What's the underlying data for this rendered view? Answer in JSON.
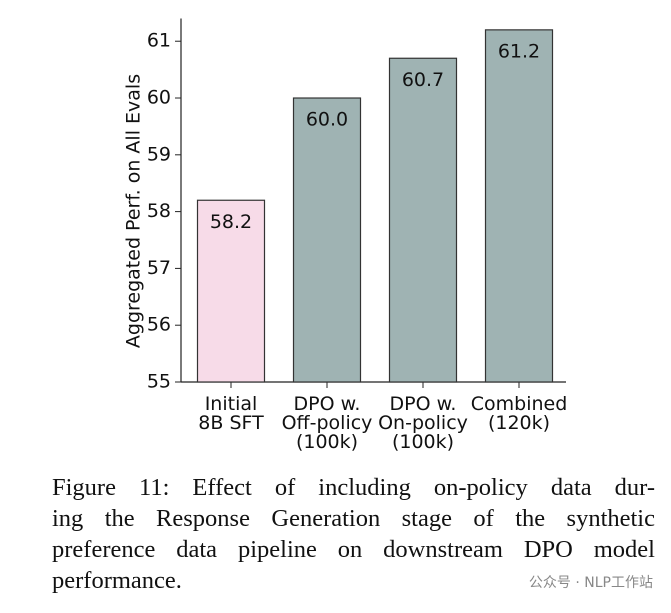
{
  "chart_data": {
    "type": "bar",
    "y_label": "Aggregated Perf. on All Evals",
    "categories": [
      "Initial\n8B SFT",
      "DPO w.\nOff-policy\n(100k)",
      "DPO w.\nOn-policy\n(100k)",
      "Combined\n(120k)"
    ],
    "values": [
      58.2,
      60.0,
      60.7,
      61.2
    ],
    "value_labels": [
      "58.2",
      "60.0",
      "60.7",
      "61.2"
    ],
    "colors": [
      "#f7dbe8",
      "#9fb3b3",
      "#9fb3b3",
      "#9fb3b3"
    ],
    "ylim": [
      55,
      61.4
    ],
    "yticks": [
      55,
      56,
      57,
      58,
      59,
      60,
      61
    ],
    "grid": false
  },
  "caption": {
    "lines": [
      "Figure 11:  Effect of including on-policy data dur-",
      "ing the Response Generation stage of the synthetic",
      "preference data pipeline on downstream DPO model",
      "performance."
    ]
  },
  "watermark": "公众号 · NLP工作站"
}
